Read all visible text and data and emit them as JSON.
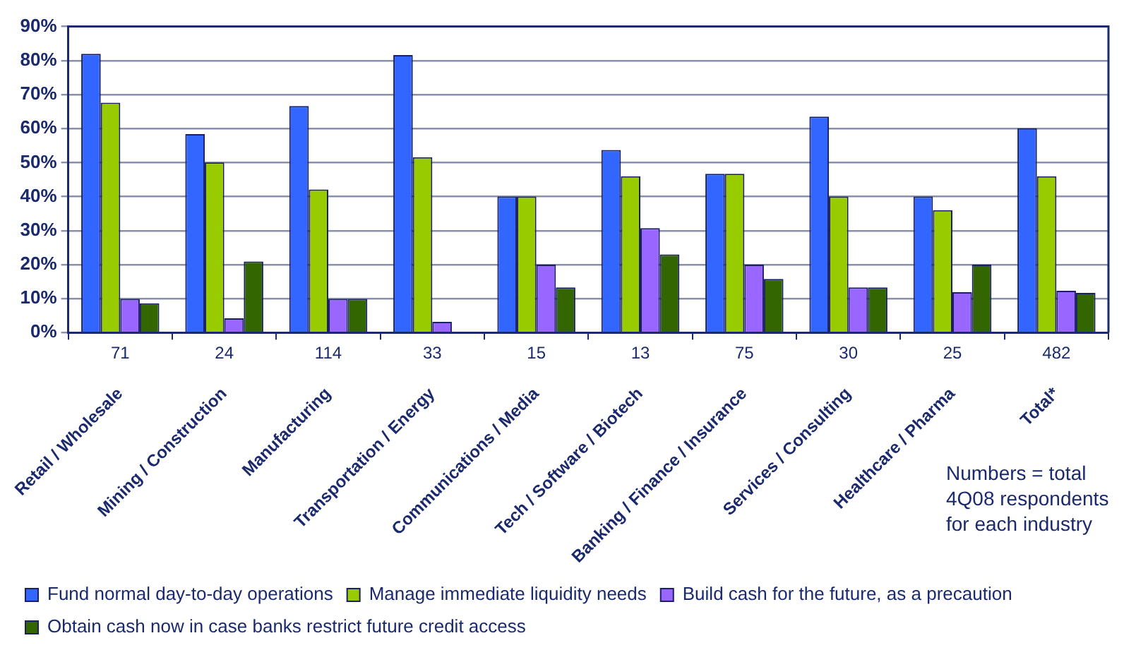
{
  "chart_data": {
    "type": "bar",
    "categories": [
      "Retail / Wholesale",
      "Mining / Construction",
      "Manufacturing",
      "Transportation / Energy",
      "Communications / Media",
      "Tech / Software / Biotech",
      "Banking / Finance / Insurance",
      "Services / Consulting",
      "Healthcare / Pharma",
      "Total*"
    ],
    "series": [
      {
        "name": "Fund normal day-to-day operations",
        "color": "#3366ff",
        "values": [
          82,
          58.4,
          66.6,
          81.6,
          40,
          53.7,
          46.7,
          63.5,
          40,
          60.1
        ]
      },
      {
        "name": "Manage immediate liquidity needs",
        "color": "#99cc00",
        "values": [
          67.6,
          50,
          42.1,
          51.6,
          40,
          46,
          46.7,
          40,
          36,
          46
        ]
      },
      {
        "name": "Build cash for the future, as a precaution",
        "color": "#9966ff",
        "values": [
          9.9,
          4.2,
          9.9,
          3.2,
          20,
          30.7,
          20,
          13.3,
          11.9,
          12.3
        ]
      },
      {
        "name": "Obtain cash now in case banks restrict future credit access",
        "color": "#336600",
        "values": [
          8.6,
          20.9,
          9.9,
          null,
          13.3,
          23,
          15.8,
          13.3,
          20,
          11.7
        ]
      }
    ],
    "ylim": [
      0,
      90
    ],
    "yticks": [
      {
        "value": 0,
        "label": "0%"
      },
      {
        "value": 10,
        "label": "10%"
      },
      {
        "value": 20,
        "label": "20%"
      },
      {
        "value": 30,
        "label": "30%"
      },
      {
        "value": 40,
        "label": "40%"
      },
      {
        "value": 50,
        "label": "50%"
      },
      {
        "value": 60,
        "label": "60%"
      },
      {
        "value": 70,
        "label": "70%"
      },
      {
        "value": 80,
        "label": "80%"
      },
      {
        "value": 90,
        "label": "90%"
      }
    ],
    "grid": "y",
    "legend": "bottom",
    "annotations": [
      "71",
      "24",
      "114",
      "33",
      "15",
      "13",
      "75",
      "30",
      "25",
      "482",
      "Numbers = total 4Q08 respondents for each industry"
    ]
  }
}
